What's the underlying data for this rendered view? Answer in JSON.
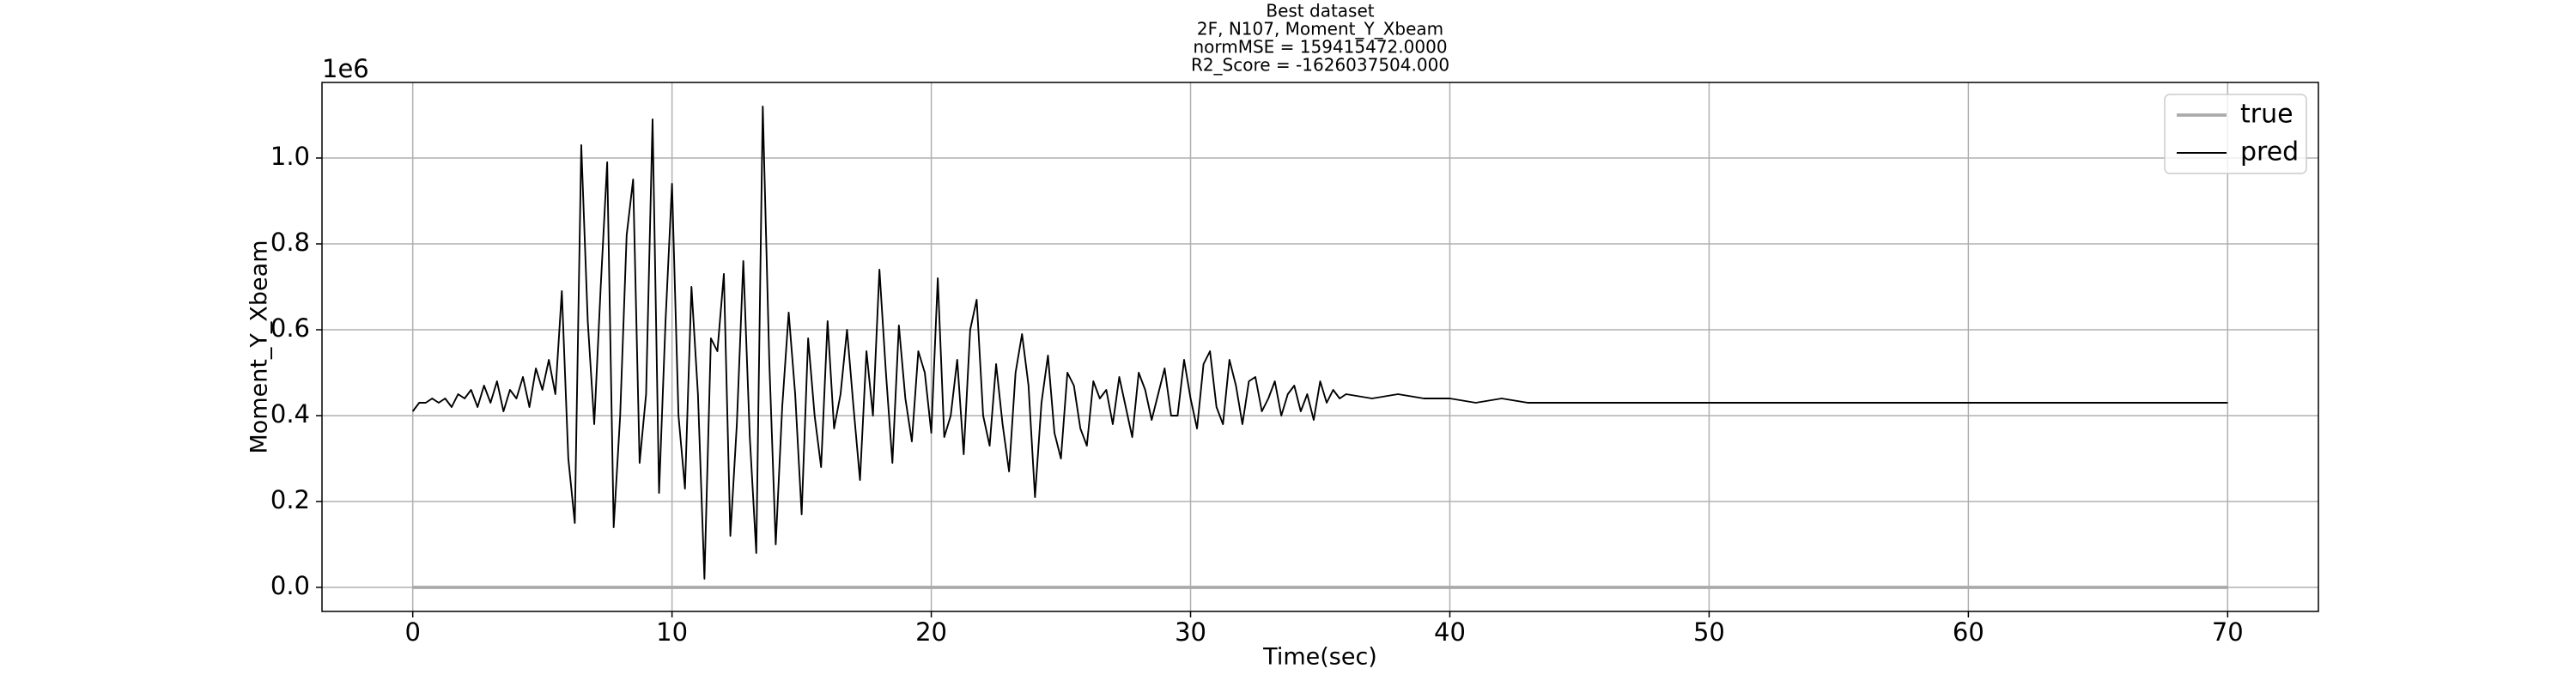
{
  "chart_data": {
    "type": "line",
    "title_lines": [
      "Best dataset",
      "2F, N107, Moment_Y_Xbeam",
      "normMSE = 159415472.0000",
      "R2_Score = -1626037504.000"
    ],
    "x_label": "Time(sec)",
    "y_label": "Moment_Y_Xbeam",
    "y_offset_label": "1e6",
    "xlim": [
      -3.5,
      73.5
    ],
    "ylim": [
      -0.056,
      1.176
    ],
    "xticks": [
      0,
      10,
      20,
      30,
      40,
      50,
      60,
      70
    ],
    "yticks": [
      {
        "value": 0,
        "label": "0.0"
      },
      0.2,
      0.4,
      0.6,
      0.8,
      {
        "value": 1,
        "label": "1.0"
      }
    ],
    "grid": true,
    "legend": "upper right",
    "x": [
      0,
      0.25,
      0.5,
      0.75,
      1,
      1.25,
      1.5,
      1.75,
      2,
      2.25,
      2.5,
      2.75,
      3,
      3.25,
      3.5,
      3.75,
      4,
      4.25,
      4.5,
      4.75,
      5,
      5.25,
      5.5,
      5.75,
      6,
      6.25,
      6.5,
      6.75,
      7,
      7.25,
      7.5,
      7.75,
      8,
      8.25,
      8.5,
      8.75,
      9,
      9.25,
      9.5,
      9.75,
      10,
      10.25,
      10.5,
      10.75,
      11,
      11.25,
      11.5,
      11.75,
      12,
      12.25,
      12.5,
      12.75,
      13,
      13.25,
      13.5,
      13.75,
      14,
      14.25,
      14.5,
      14.75,
      15,
      15.25,
      15.5,
      15.75,
      16,
      16.25,
      16.5,
      16.75,
      17,
      17.25,
      17.5,
      17.75,
      18,
      18.25,
      18.5,
      18.75,
      19,
      19.25,
      19.5,
      19.75,
      20,
      20.25,
      20.5,
      20.75,
      21,
      21.25,
      21.5,
      21.75,
      22,
      22.25,
      22.5,
      22.75,
      23,
      23.25,
      23.5,
      23.75,
      24,
      24.25,
      24.5,
      24.75,
      25,
      25.25,
      25.5,
      25.75,
      26,
      26.25,
      26.5,
      26.75,
      27,
      27.25,
      27.5,
      27.75,
      28,
      28.25,
      28.5,
      28.75,
      29,
      29.25,
      29.5,
      29.75,
      30,
      30.25,
      30.5,
      30.75,
      31,
      31.25,
      31.5,
      31.75,
      32,
      32.25,
      32.5,
      32.75,
      33,
      33.25,
      33.5,
      33.75,
      34,
      34.25,
      34.5,
      34.75,
      35,
      35.25,
      35.5,
      35.75,
      36,
      37,
      38,
      39,
      40,
      41,
      42,
      43,
      44,
      45,
      46,
      47,
      48,
      49,
      50,
      51,
      52,
      53,
      54,
      55,
      56,
      57,
      58,
      59,
      60,
      61,
      62,
      63,
      64,
      65,
      66,
      67,
      68,
      69,
      70
    ],
    "series": [
      {
        "name": "true",
        "color": "#aaaaaa",
        "width": 2,
        "values": [
          0,
          0,
          0,
          0,
          0,
          0,
          0,
          0,
          0,
          0,
          0,
          0,
          0,
          0,
          0,
          0,
          0,
          0,
          0,
          0,
          0,
          0,
          0,
          0,
          0,
          0,
          0,
          0,
          0,
          0,
          0,
          0,
          0,
          0,
          0,
          0,
          0,
          0,
          0,
          0,
          0,
          0,
          0,
          0,
          0,
          0,
          0,
          0,
          0,
          0,
          0,
          0,
          0,
          0,
          0,
          0,
          0,
          0,
          0,
          0,
          0,
          0,
          0,
          0,
          0,
          0,
          0,
          0,
          0,
          0,
          0,
          0,
          0,
          0,
          0,
          0,
          0,
          0,
          0,
          0,
          0,
          0,
          0,
          0,
          0,
          0,
          0,
          0,
          0,
          0,
          0,
          0,
          0,
          0,
          0,
          0,
          0,
          0,
          0,
          0,
          0,
          0,
          0,
          0,
          0,
          0,
          0,
          0,
          0,
          0,
          0,
          0,
          0,
          0,
          0,
          0,
          0,
          0,
          0,
          0,
          0,
          0,
          0,
          0,
          0,
          0,
          0,
          0,
          0,
          0,
          0,
          0,
          0,
          0,
          0,
          0,
          0,
          0,
          0,
          0,
          0,
          0,
          0,
          0,
          0,
          0,
          0,
          0,
          0,
          0,
          0,
          0,
          0,
          0,
          0,
          0,
          0,
          0,
          0,
          0,
          0,
          0,
          0,
          0,
          0,
          0,
          0,
          0,
          0,
          0,
          0,
          0,
          0,
          0,
          0,
          0,
          0,
          0,
          0
        ]
      },
      {
        "name": "pred",
        "color": "#000000",
        "width": 1,
        "values": [
          0.41,
          0.43,
          0.43,
          0.44,
          0.43,
          0.44,
          0.42,
          0.45,
          0.44,
          0.46,
          0.42,
          0.47,
          0.43,
          0.48,
          0.41,
          0.46,
          0.44,
          0.49,
          0.42,
          0.51,
          0.46,
          0.53,
          0.45,
          0.69,
          0.3,
          0.15,
          1.03,
          0.62,
          0.38,
          0.7,
          0.99,
          0.14,
          0.4,
          0.82,
          0.95,
          0.29,
          0.45,
          1.09,
          0.22,
          0.62,
          0.94,
          0.4,
          0.23,
          0.7,
          0.45,
          0.02,
          0.58,
          0.55,
          0.73,
          0.12,
          0.38,
          0.76,
          0.35,
          0.08,
          1.12,
          0.53,
          0.1,
          0.42,
          0.64,
          0.45,
          0.17,
          0.58,
          0.4,
          0.28,
          0.62,
          0.37,
          0.45,
          0.6,
          0.42,
          0.25,
          0.55,
          0.4,
          0.74,
          0.5,
          0.29,
          0.61,
          0.44,
          0.34,
          0.55,
          0.5,
          0.36,
          0.72,
          0.35,
          0.4,
          0.53,
          0.31,
          0.6,
          0.67,
          0.4,
          0.33,
          0.52,
          0.38,
          0.27,
          0.5,
          0.59,
          0.47,
          0.21,
          0.43,
          0.54,
          0.36,
          0.3,
          0.5,
          0.47,
          0.37,
          0.33,
          0.48,
          0.44,
          0.46,
          0.38,
          0.49,
          0.42,
          0.35,
          0.5,
          0.46,
          0.39,
          0.45,
          0.51,
          0.4,
          0.4,
          0.53,
          0.44,
          0.37,
          0.52,
          0.55,
          0.42,
          0.38,
          0.53,
          0.47,
          0.38,
          0.48,
          0.49,
          0.41,
          0.44,
          0.48,
          0.4,
          0.45,
          0.47,
          0.41,
          0.45,
          0.39,
          0.48,
          0.43,
          0.46,
          0.44,
          0.45,
          0.44,
          0.45,
          0.44,
          0.44,
          0.43,
          0.44,
          0.43,
          0.43,
          0.43,
          0.43,
          0.43,
          0.43,
          0.43,
          0.43,
          0.43,
          0.43,
          0.43,
          0.43,
          0.43,
          0.43,
          0.43,
          0.43,
          0.43,
          0.43,
          0.43,
          0.43,
          0.43,
          0.43,
          0.43,
          0.43,
          0.43,
          0.43,
          0.43,
          0.43
        ]
      }
    ]
  }
}
